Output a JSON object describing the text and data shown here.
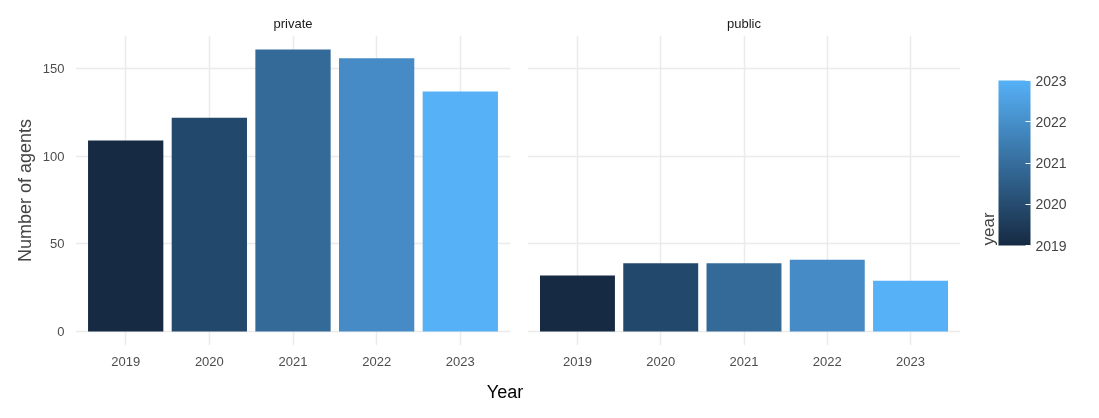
{
  "chart_data": [
    {
      "type": "bar",
      "title": "private",
      "ylabel": "Number of agents",
      "xlabel": "Year",
      "categories": [
        "2019",
        "2020",
        "2021",
        "2022",
        "2023"
      ],
      "values": [
        109,
        122,
        161,
        156,
        137
      ],
      "colors": [
        "#162b43",
        "#22486b",
        "#346a98",
        "#468bc6",
        "#56b1f7"
      ],
      "ylim": [
        -8,
        169
      ],
      "yticks": [
        0,
        50,
        100,
        150
      ],
      "grid": true
    },
    {
      "type": "bar",
      "title": "public",
      "categories": [
        "2019",
        "2020",
        "2021",
        "2022",
        "2023"
      ],
      "values": [
        32,
        39,
        39,
        41,
        29
      ],
      "colors": [
        "#162b43",
        "#22486b",
        "#346a98",
        "#468bc6",
        "#56b1f7"
      ],
      "ylim": [
        -8,
        169
      ],
      "yticks": [
        0,
        50,
        100,
        150
      ],
      "grid": true,
      "tick_labels": "x",
      "legend_title": "year",
      "clim": [
        2019,
        2023
      ],
      "cticks": [
        2019,
        2020,
        2021,
        2022,
        2023
      ]
    }
  ]
}
